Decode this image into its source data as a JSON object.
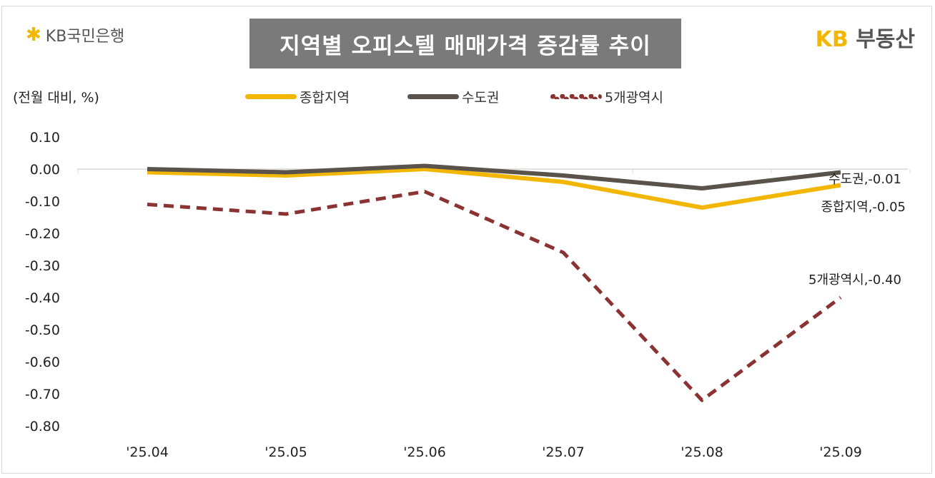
{
  "logos": {
    "left": "KB국민은행",
    "right_kb": "KB",
    "right_text": "부동산"
  },
  "chart_data": {
    "type": "line",
    "title": "지역별 오피스텔 매매가격 증감률 추이",
    "ylabel": "(전월 대비, %)",
    "categories": [
      "'25.04",
      "'25.05",
      "'25.06",
      "'25.07",
      "'25.08",
      "'25.09"
    ],
    "ylim": [
      -0.8,
      0.1
    ],
    "yticks": [
      "0.10",
      "0.00",
      "-0.10",
      "-0.20",
      "-0.30",
      "-0.40",
      "-0.50",
      "-0.60",
      "-0.70",
      "-0.80"
    ],
    "grid": "vertical minor only",
    "legend_position": "top",
    "series": [
      {
        "name": "종합지역",
        "color": "#f2b705",
        "dash": false,
        "values": [
          -0.01,
          -0.02,
          0.0,
          -0.04,
          -0.12,
          -0.05
        ],
        "end_label": "종합지역,-0.05"
      },
      {
        "name": "수도권",
        "color": "#5a534b",
        "dash": false,
        "values": [
          0.0,
          -0.01,
          0.01,
          -0.02,
          -0.06,
          -0.01
        ],
        "end_label": "수도권,-0.01"
      },
      {
        "name": "5개광역시",
        "color": "#8b3333",
        "dash": true,
        "values": [
          -0.11,
          -0.14,
          -0.07,
          -0.26,
          -0.72,
          -0.4
        ],
        "end_label": "5개광역시,-0.40"
      }
    ]
  }
}
